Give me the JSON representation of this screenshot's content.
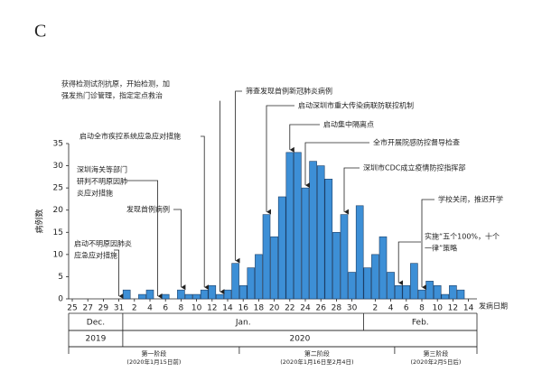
{
  "chart_data": {
    "type": "bar",
    "panel_label": "C",
    "y_label": "病例数",
    "x_label": "发病日期",
    "color": "#3d8fd6",
    "categories": [
      "25",
      null,
      "27",
      null,
      "29",
      null,
      "31",
      null,
      "2",
      null,
      "4",
      null,
      "6",
      null,
      "8",
      null,
      "10",
      null,
      "12",
      null,
      "14",
      null,
      "16",
      null,
      "18",
      null,
      "20",
      null,
      "22",
      null,
      "24",
      null,
      "26",
      null,
      "28",
      null,
      "30",
      null,
      null,
      "2",
      null,
      "4",
      null,
      "6",
      null,
      "8",
      null,
      "10",
      null,
      "12",
      null,
      "14",
      null
    ],
    "values": [
      0,
      0,
      0,
      0,
      0,
      0,
      0,
      2,
      0,
      1,
      2,
      0,
      1,
      0,
      2,
      1,
      1,
      2,
      3,
      1,
      2,
      8,
      3,
      7,
      10,
      19,
      14,
      23,
      33,
      33,
      25,
      31,
      30,
      27,
      15,
      19,
      6,
      21,
      7,
      10,
      14,
      6,
      3,
      3,
      8,
      2,
      4,
      3,
      1,
      3,
      2,
      0,
      0
    ],
    "ylim": [
      0,
      35
    ],
    "yticks": [
      0,
      5,
      10,
      15,
      20,
      25,
      30,
      35
    ],
    "months": [
      "Dec.",
      "Jan.",
      "Feb."
    ],
    "years": [
      "2019",
      "2020"
    ],
    "phases": [
      {
        "name": "第一阶段",
        "range": "(2020年1月15日前)"
      },
      {
        "name": "第二阶段",
        "range": "(2020年1月16日至2月4日)"
      },
      {
        "name": "第三阶段",
        "range": "(2020年2月5日后)"
      }
    ],
    "annotations": [
      {
        "lines": [
          "获得检测试剂抗原，开始检测，加",
          "强发热门诊管理，指定定点救治"
        ]
      },
      {
        "lines": [
          "筛查发现首例新冠肺炎病例"
        ]
      },
      {
        "lines": [
          "启动深圳市重大传染病联防联控机制"
        ]
      },
      {
        "lines": [
          "启动集中隔离点"
        ]
      },
      {
        "lines": [
          "全市开展院感防控督导检查"
        ]
      },
      {
        "lines": [
          "深圳市CDC成立疫情防控指挥部"
        ]
      },
      {
        "lines": [
          "学校关闭，推迟开学"
        ]
      },
      {
        "lines": [
          "实施“五个100%，十个",
          "一律”策略"
        ]
      },
      {
        "lines": [
          "启动全市疾控系统应急应对措施"
        ]
      },
      {
        "lines": [
          "深圳海关等部门",
          "研判不明原因肺",
          "炎应对措施"
        ]
      },
      {
        "lines": [
          "发现首例病例"
        ]
      },
      {
        "lines": [
          "启动不明原因肺炎",
          "应急应对措施"
        ]
      }
    ]
  }
}
